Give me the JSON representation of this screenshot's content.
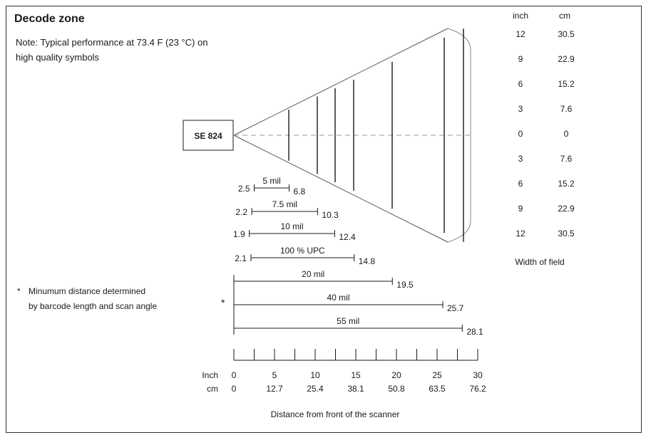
{
  "title": "Decode zone",
  "note_line1": "Note: Typical performance at 73.4 F (23 °C) on",
  "note_line2": "high quality symbols",
  "scanner_label": "SE 824",
  "width_axis": {
    "header_inch": "inch",
    "header_cm": "cm",
    "rows": [
      {
        "inch": "12",
        "cm": "30.5"
      },
      {
        "inch": "9",
        "cm": "22.9"
      },
      {
        "inch": "6",
        "cm": "15.2"
      },
      {
        "inch": "3",
        "cm": "7.6"
      },
      {
        "inch": "0",
        "cm": "0"
      },
      {
        "inch": "3",
        "cm": "7.6"
      },
      {
        "inch": "6",
        "cm": "15.2"
      },
      {
        "inch": "9",
        "cm": "22.9"
      },
      {
        "inch": "12",
        "cm": "30.5"
      }
    ],
    "footer": "Width  of  field"
  },
  "ranges": [
    {
      "label": "5 mil",
      "min": "2.5",
      "max": "6.8",
      "min_in": 2.5,
      "max_in": 6.8
    },
    {
      "label": "7.5 mil",
      "min": "2.2",
      "max": "10.3",
      "min_in": 2.2,
      "max_in": 10.3
    },
    {
      "label": "10  mil",
      "min": "1.9",
      "max": "12.4",
      "min_in": 1.9,
      "max_in": 12.4
    },
    {
      "label": "100  %  UPC",
      "min": "2.1",
      "max": "14.8",
      "min_in": 2.1,
      "max_in": 14.8
    },
    {
      "label": "20  mil",
      "min": "",
      "max": "19.5",
      "min_in": 0,
      "max_in": 19.5
    },
    {
      "label": "40  mil",
      "min": "",
      "max": "25.7",
      "min_in": 0,
      "max_in": 25.7
    },
    {
      "label": "55  mil",
      "min": "",
      "max": "28.1",
      "min_in": 0,
      "max_in": 28.1
    }
  ],
  "asterisk": "*",
  "footnote_line1": "Minumum distance determined",
  "footnote_line2": "by barcode length and scan angle",
  "distance_axis": {
    "inch_label": "Inch",
    "cm_label": "cm",
    "inch_ticks": [
      "0",
      "5",
      "10",
      "15",
      "20",
      "25",
      "30"
    ],
    "cm_ticks": [
      "0",
      "12.7",
      "25.4",
      "38.1",
      "50.8",
      "63.5",
      "76.2"
    ],
    "title": "Distance from front of the scanner",
    "max_in": 30
  }
}
